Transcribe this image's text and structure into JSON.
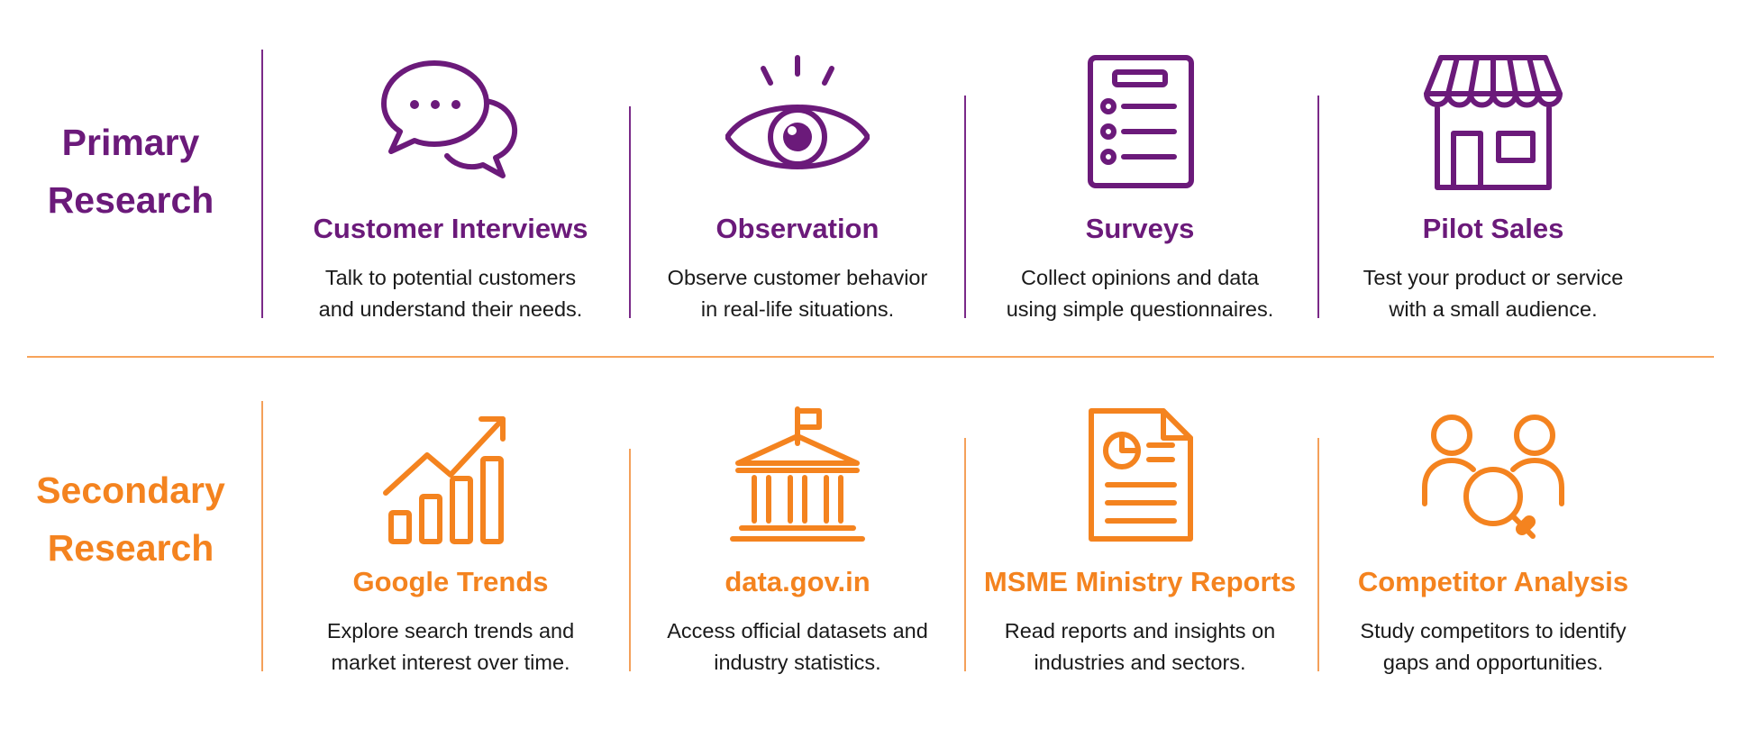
{
  "colors": {
    "primary": "#6b1a7a",
    "secondary": "#f4831f"
  },
  "primary": {
    "label_line1": "Primary",
    "label_line2": "Research",
    "items": [
      {
        "icon": "chat-bubbles-icon",
        "title": "Customer Interviews",
        "desc_line1": "Talk to potential customers",
        "desc_line2": "and understand their needs."
      },
      {
        "icon": "eye-icon",
        "title": "Observation",
        "desc_line1": "Observe customer behavior",
        "desc_line2": "in real-life situations."
      },
      {
        "icon": "clipboard-list-icon",
        "title": "Surveys",
        "desc_line1": "Collect opinions and data",
        "desc_line2": "using simple questionnaires."
      },
      {
        "icon": "storefront-icon",
        "title": "Pilot Sales",
        "desc_line1": "Test your product or service",
        "desc_line2": "with a small audience."
      }
    ]
  },
  "secondary": {
    "label_line1": "Secondary",
    "label_line2": "Research",
    "items": [
      {
        "icon": "trend-chart-icon",
        "title": "Google Trends",
        "desc_line1": "Explore search trends and",
        "desc_line2": "market interest over time."
      },
      {
        "icon": "government-building-icon",
        "title": "data.gov.in",
        "desc_line1": "Access official datasets and",
        "desc_line2": "industry statistics."
      },
      {
        "icon": "report-document-icon",
        "title": "MSME Ministry Reports",
        "desc_line1": "Read reports and insights on",
        "desc_line2": "industries and sectors."
      },
      {
        "icon": "competitor-search-icon",
        "title": "Competitor Analysis",
        "desc_line1": "Study competitors to identify",
        "desc_line2": "gaps and opportunities."
      }
    ]
  }
}
